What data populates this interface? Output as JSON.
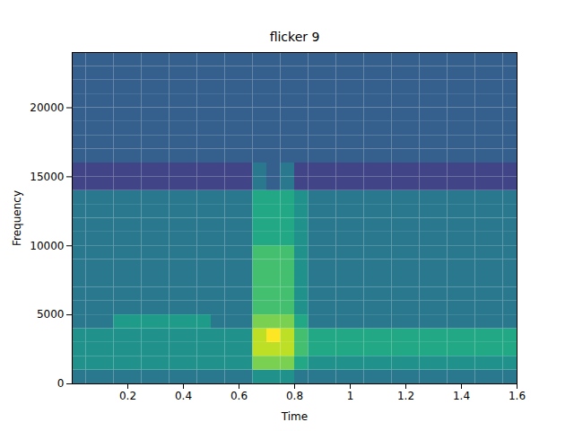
{
  "chart_data": {
    "type": "spectrogram",
    "title": "flicker 9",
    "x_label": "Time",
    "y_label": "Frequency",
    "xlim": [
      0,
      1.6
    ],
    "ylim": [
      0,
      24000
    ],
    "xticks": [
      0.2,
      0.4,
      0.6,
      0.8,
      1.0,
      1.2,
      1.4,
      1.6
    ],
    "yticks": [
      0,
      5000,
      10000,
      15000,
      20000
    ],
    "color": "viridis",
    "zlim": [
      0,
      10
    ],
    "time_bins": [
      0,
      0.05,
      0.1,
      0.15,
      0.2,
      0.25,
      0.3,
      0.35,
      0.4,
      0.45,
      0.5,
      0.55,
      0.6,
      0.65,
      0.7,
      0.75,
      0.8,
      0.85,
      0.9,
      0.95,
      1.0,
      1.05,
      1.1,
      1.15,
      1.2,
      1.25,
      1.3,
      1.35,
      1.4,
      1.45,
      1.5,
      1.55,
      1.6
    ],
    "frequency_bins": [
      0,
      1000,
      2000,
      3000,
      4000,
      5000,
      6000,
      7000,
      8000,
      9000,
      10000,
      11000,
      12000,
      13000,
      14000,
      15000,
      16000,
      17000,
      18000,
      19000,
      20000,
      21000,
      22000,
      23000,
      24000
    ],
    "cells": [
      [
        4,
        4,
        4,
        4,
        4,
        4,
        4,
        4,
        4,
        4,
        4,
        4,
        4,
        5,
        5,
        5,
        4,
        4,
        4,
        4,
        4,
        4,
        4,
        4,
        4,
        4,
        4,
        4,
        4,
        4,
        4,
        4
      ],
      [
        5,
        5,
        5,
        5,
        5,
        5,
        5,
        5,
        5,
        5,
        5,
        5,
        5,
        8,
        8,
        8,
        6,
        5,
        5,
        5,
        5,
        5,
        5,
        5,
        5,
        5,
        5,
        5,
        5,
        5,
        5,
        5
      ],
      [
        5,
        5,
        5,
        5,
        5,
        5,
        5,
        5,
        5,
        5,
        5,
        5,
        5,
        9,
        9,
        9,
        7,
        6,
        6,
        6,
        6,
        6,
        6,
        6,
        6,
        6,
        6,
        6,
        6,
        6,
        6,
        6
      ],
      [
        5,
        5,
        5,
        5,
        5,
        5,
        5,
        5,
        5,
        5,
        5,
        5,
        5,
        9,
        10,
        9,
        7,
        6,
        6,
        6,
        6,
        6,
        6,
        6,
        6,
        6,
        6,
        6,
        6,
        6,
        6,
        6
      ],
      [
        4,
        4,
        4,
        5.5,
        5.5,
        5.5,
        5.5,
        5.5,
        5.5,
        5.5,
        4,
        4,
        4,
        8,
        8,
        8,
        6,
        4,
        4,
        4,
        4,
        4,
        4,
        4,
        4,
        4,
        4,
        4,
        4,
        4,
        4,
        4
      ],
      [
        4,
        4,
        4,
        4,
        4,
        4,
        4,
        4,
        4,
        4,
        4,
        4,
        4,
        7,
        7,
        7,
        5,
        4,
        4,
        4,
        4,
        4,
        4,
        4,
        4,
        4,
        4,
        4,
        4,
        4,
        4,
        4
      ],
      [
        4,
        4,
        4,
        4,
        4,
        4,
        4,
        4,
        4,
        4,
        4,
        4,
        4,
        7,
        7,
        7,
        5,
        4,
        4,
        4,
        4,
        4,
        4,
        4,
        4,
        4,
        4,
        4,
        4,
        4,
        4,
        4
      ],
      [
        4,
        4,
        4,
        4,
        4,
        4,
        4,
        4,
        4,
        4,
        4,
        4,
        4,
        7,
        7,
        7,
        5,
        4,
        4,
        4,
        4,
        4,
        4,
        4,
        4,
        4,
        4,
        4,
        4,
        4,
        4,
        4
      ],
      [
        4,
        4,
        4,
        4,
        4,
        4,
        4,
        4,
        4,
        4,
        4,
        4,
        4,
        7,
        7,
        7,
        5,
        4,
        4,
        4,
        4,
        4,
        4,
        4,
        4,
        4,
        4,
        4,
        4,
        4,
        4,
        4
      ],
      [
        4,
        4,
        4,
        4,
        4,
        4,
        4,
        4,
        4,
        4,
        4,
        4,
        4,
        7,
        7,
        7,
        5,
        4,
        4,
        4,
        4,
        4,
        4,
        4,
        4,
        4,
        4,
        4,
        4,
        4,
        4,
        4
      ],
      [
        4,
        4,
        4,
        4,
        4,
        4,
        4,
        4,
        4,
        4,
        4,
        4,
        4,
        6,
        6,
        6,
        5,
        4,
        4,
        4,
        4,
        4,
        4,
        4,
        4,
        4,
        4,
        4,
        4,
        4,
        4,
        4
      ],
      [
        4,
        4,
        4,
        4,
        4,
        4,
        4,
        4,
        4,
        4,
        4,
        4,
        4,
        6,
        6,
        6,
        5,
        4,
        4,
        4,
        4,
        4,
        4,
        4,
        4,
        4,
        4,
        4,
        4,
        4,
        4,
        4
      ],
      [
        4,
        4,
        4,
        4,
        4,
        4,
        4,
        4,
        4,
        4,
        4,
        4,
        4,
        6,
        6,
        6,
        5,
        4,
        4,
        4,
        4,
        4,
        4,
        4,
        4,
        4,
        4,
        4,
        4,
        4,
        4,
        4
      ],
      [
        4,
        4,
        4,
        4,
        4,
        4,
        4,
        4,
        4,
        4,
        4,
        4,
        4,
        6,
        6,
        6,
        5,
        4,
        4,
        4,
        4,
        4,
        4,
        4,
        4,
        4,
        4,
        4,
        4,
        4,
        4,
        4
      ],
      [
        2,
        2,
        2,
        2,
        2,
        2,
        2,
        2,
        2,
        2,
        2,
        2,
        2,
        4,
        3,
        4,
        2,
        2,
        2,
        2,
        2,
        2,
        2,
        2,
        2,
        2,
        2,
        2,
        2,
        2,
        2,
        2
      ],
      [
        2,
        2,
        2,
        2,
        2,
        2,
        2,
        2,
        2,
        2,
        2,
        2,
        2,
        4,
        3,
        4,
        2,
        2,
        2,
        2,
        2,
        2,
        2,
        2,
        2,
        2,
        2,
        2,
        2,
        2,
        2,
        2
      ],
      [
        3,
        3,
        3,
        3,
        3,
        3,
        3,
        3,
        3,
        3,
        3,
        3,
        3,
        3,
        3,
        3,
        3,
        3,
        3,
        3,
        3,
        3,
        3,
        3,
        3,
        3,
        3,
        3,
        3,
        3,
        3,
        3
      ],
      [
        3,
        3,
        3,
        3,
        3,
        3,
        3,
        3,
        3,
        3,
        3,
        3,
        3,
        3,
        3,
        3,
        3,
        3,
        3,
        3,
        3,
        3,
        3,
        3,
        3,
        3,
        3,
        3,
        3,
        3,
        3,
        3
      ],
      [
        3,
        3,
        3,
        3,
        3,
        3,
        3,
        3,
        3,
        3,
        3,
        3,
        3,
        3,
        3,
        3,
        3,
        3,
        3,
        3,
        3,
        3,
        3,
        3,
        3,
        3,
        3,
        3,
        3,
        3,
        3,
        3
      ],
      [
        3,
        3,
        3,
        3,
        3,
        3,
        3,
        3,
        3,
        3,
        3,
        3,
        3,
        3,
        3,
        3,
        3,
        3,
        3,
        3,
        3,
        3,
        3,
        3,
        3,
        3,
        3,
        3,
        3,
        3,
        3,
        3
      ],
      [
        3,
        3,
        3,
        3,
        3,
        3,
        3,
        3,
        3,
        3,
        3,
        3,
        3,
        3,
        3,
        3,
        3,
        3,
        3,
        3,
        3,
        3,
        3,
        3,
        3,
        3,
        3,
        3,
        3,
        3,
        3,
        3
      ],
      [
        3,
        3,
        3,
        3,
        3,
        3,
        3,
        3,
        3,
        3,
        3,
        3,
        3,
        3,
        3,
        3,
        3,
        3,
        3,
        3,
        3,
        3,
        3,
        3,
        3,
        3,
        3,
        3,
        3,
        3,
        3,
        3
      ],
      [
        3,
        3,
        3,
        3,
        3,
        3,
        3,
        3,
        3,
        3,
        3,
        3,
        3,
        3,
        3,
        3,
        3,
        3,
        3,
        3,
        3,
        3,
        3,
        3,
        3,
        3,
        3,
        3,
        3,
        3,
        3,
        3
      ],
      [
        3,
        3,
        3,
        3,
        3,
        3,
        3,
        3,
        3,
        3,
        3,
        3,
        3,
        3,
        3,
        3,
        3,
        3,
        3,
        3,
        3,
        3,
        3,
        3,
        3,
        3,
        3,
        3,
        3,
        3,
        3,
        3
      ]
    ]
  }
}
